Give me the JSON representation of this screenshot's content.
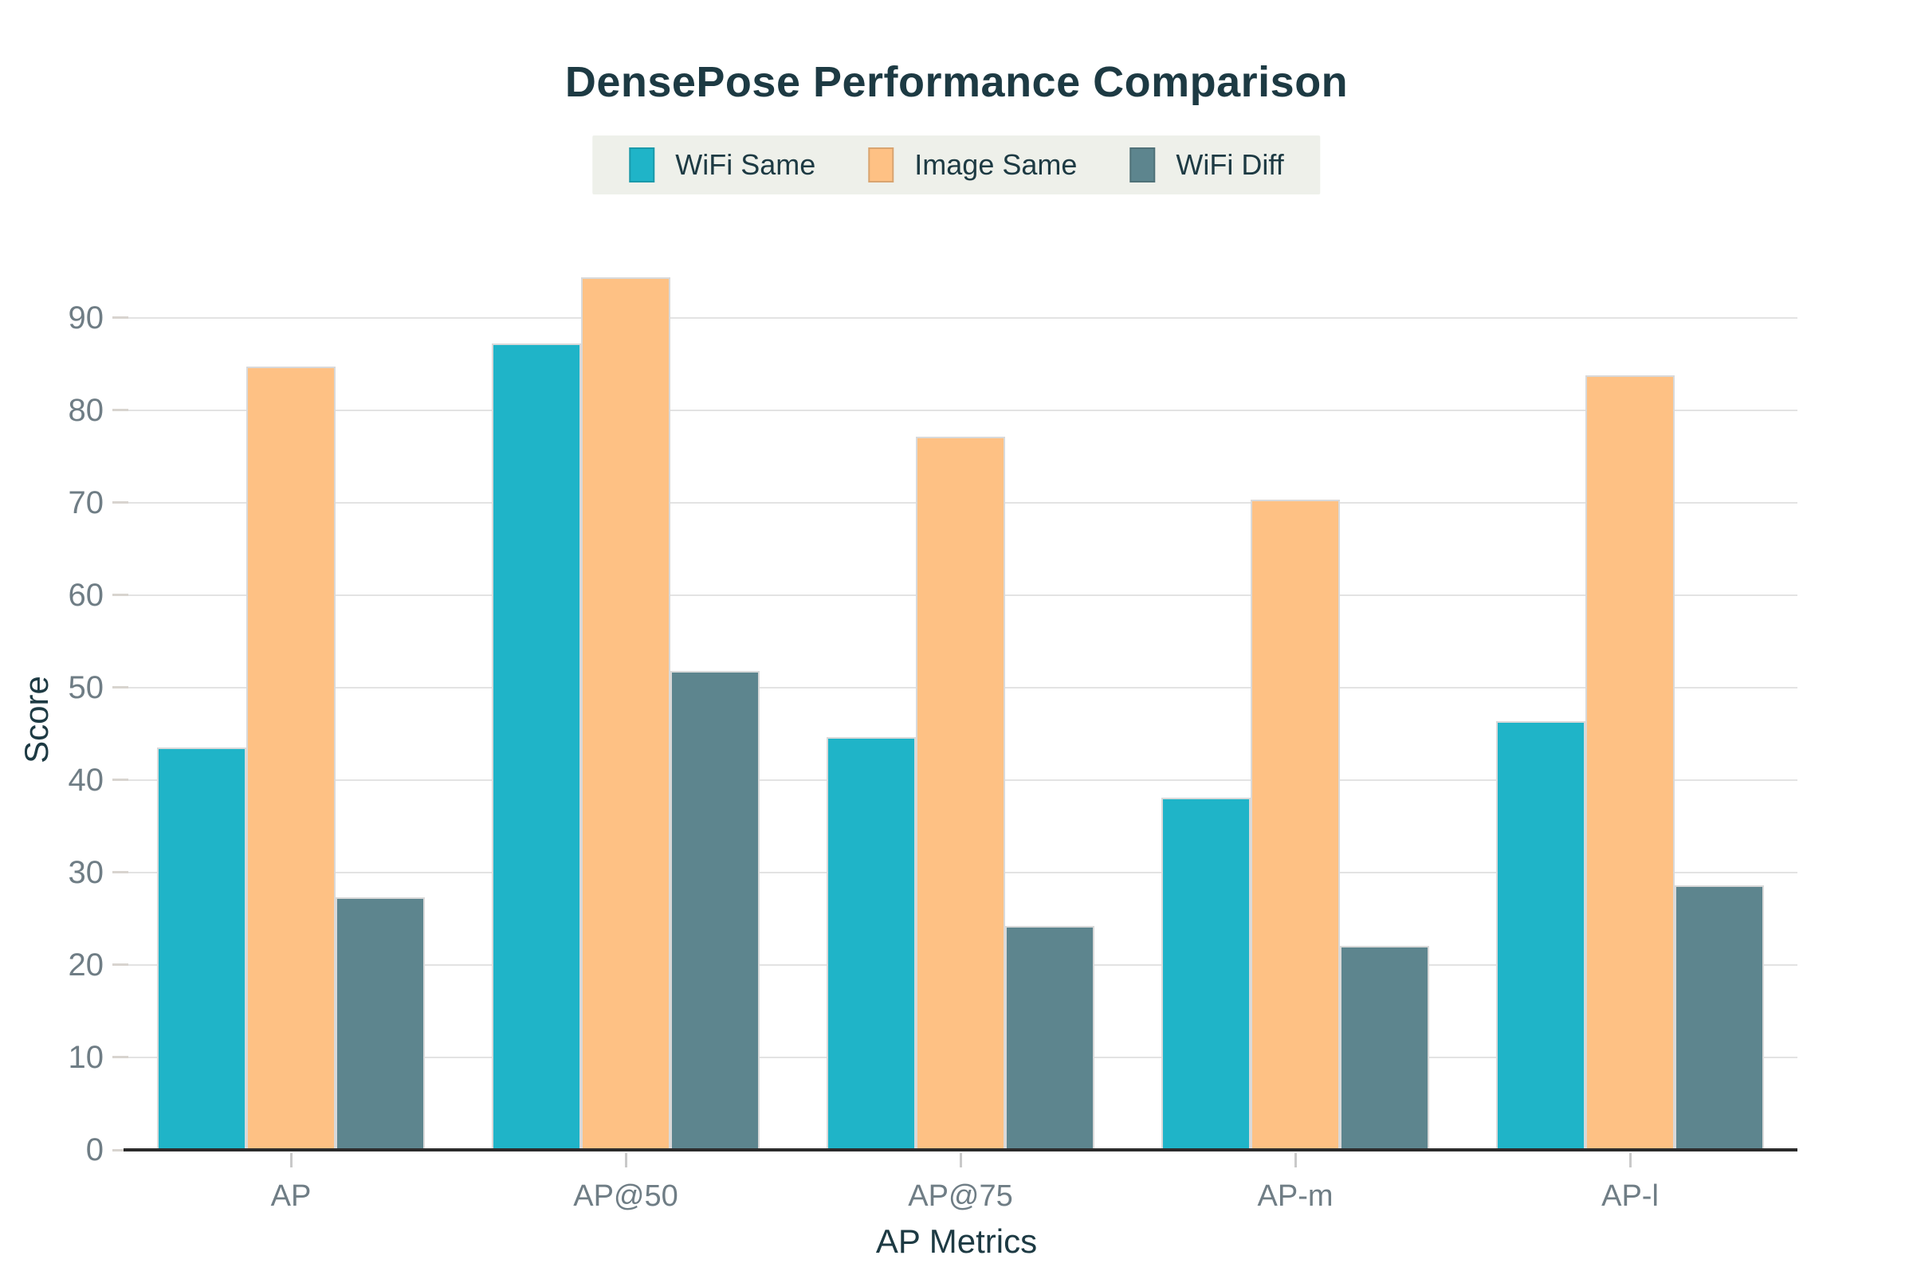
{
  "chart_data": {
    "type": "bar",
    "title": "DensePose Performance Comparison",
    "xlabel": "AP Metrics",
    "ylabel": "Score",
    "categories": [
      "AP",
      "AP@50",
      "AP@75",
      "AP-m",
      "AP-l"
    ],
    "series": [
      {
        "name": "WiFi Same",
        "color": "#1fb4c8",
        "values": [
          43.5,
          87.2,
          44.6,
          38.1,
          46.4
        ]
      },
      {
        "name": "Image Same",
        "color": "#fec184",
        "values": [
          84.7,
          94.4,
          77.1,
          70.3,
          83.8
        ]
      },
      {
        "name": "WiFi Diff",
        "color": "#5d858e",
        "values": [
          27.3,
          51.8,
          24.2,
          22.1,
          28.6
        ]
      }
    ],
    "yticks": [
      0,
      10,
      20,
      30,
      40,
      50,
      60,
      70,
      80,
      90
    ],
    "ylim": [
      0,
      98.5
    ],
    "grid": true,
    "legend_position": "top center"
  },
  "style": {
    "title_color": "#1d3a43",
    "axis_label_color": "#1d3a43",
    "legend_text_color": "#1d3a43",
    "tick_label_color": "#6f7d85",
    "gridline_color": "#e3e3e3",
    "tick_mark_color": "#d8d4cf",
    "x_tick_mark_color": "#c9c9c9",
    "axis_line_color": "#2b2b2b",
    "bar_edge_color": "#d9d9d9",
    "legend_background": "#eef0ea"
  }
}
